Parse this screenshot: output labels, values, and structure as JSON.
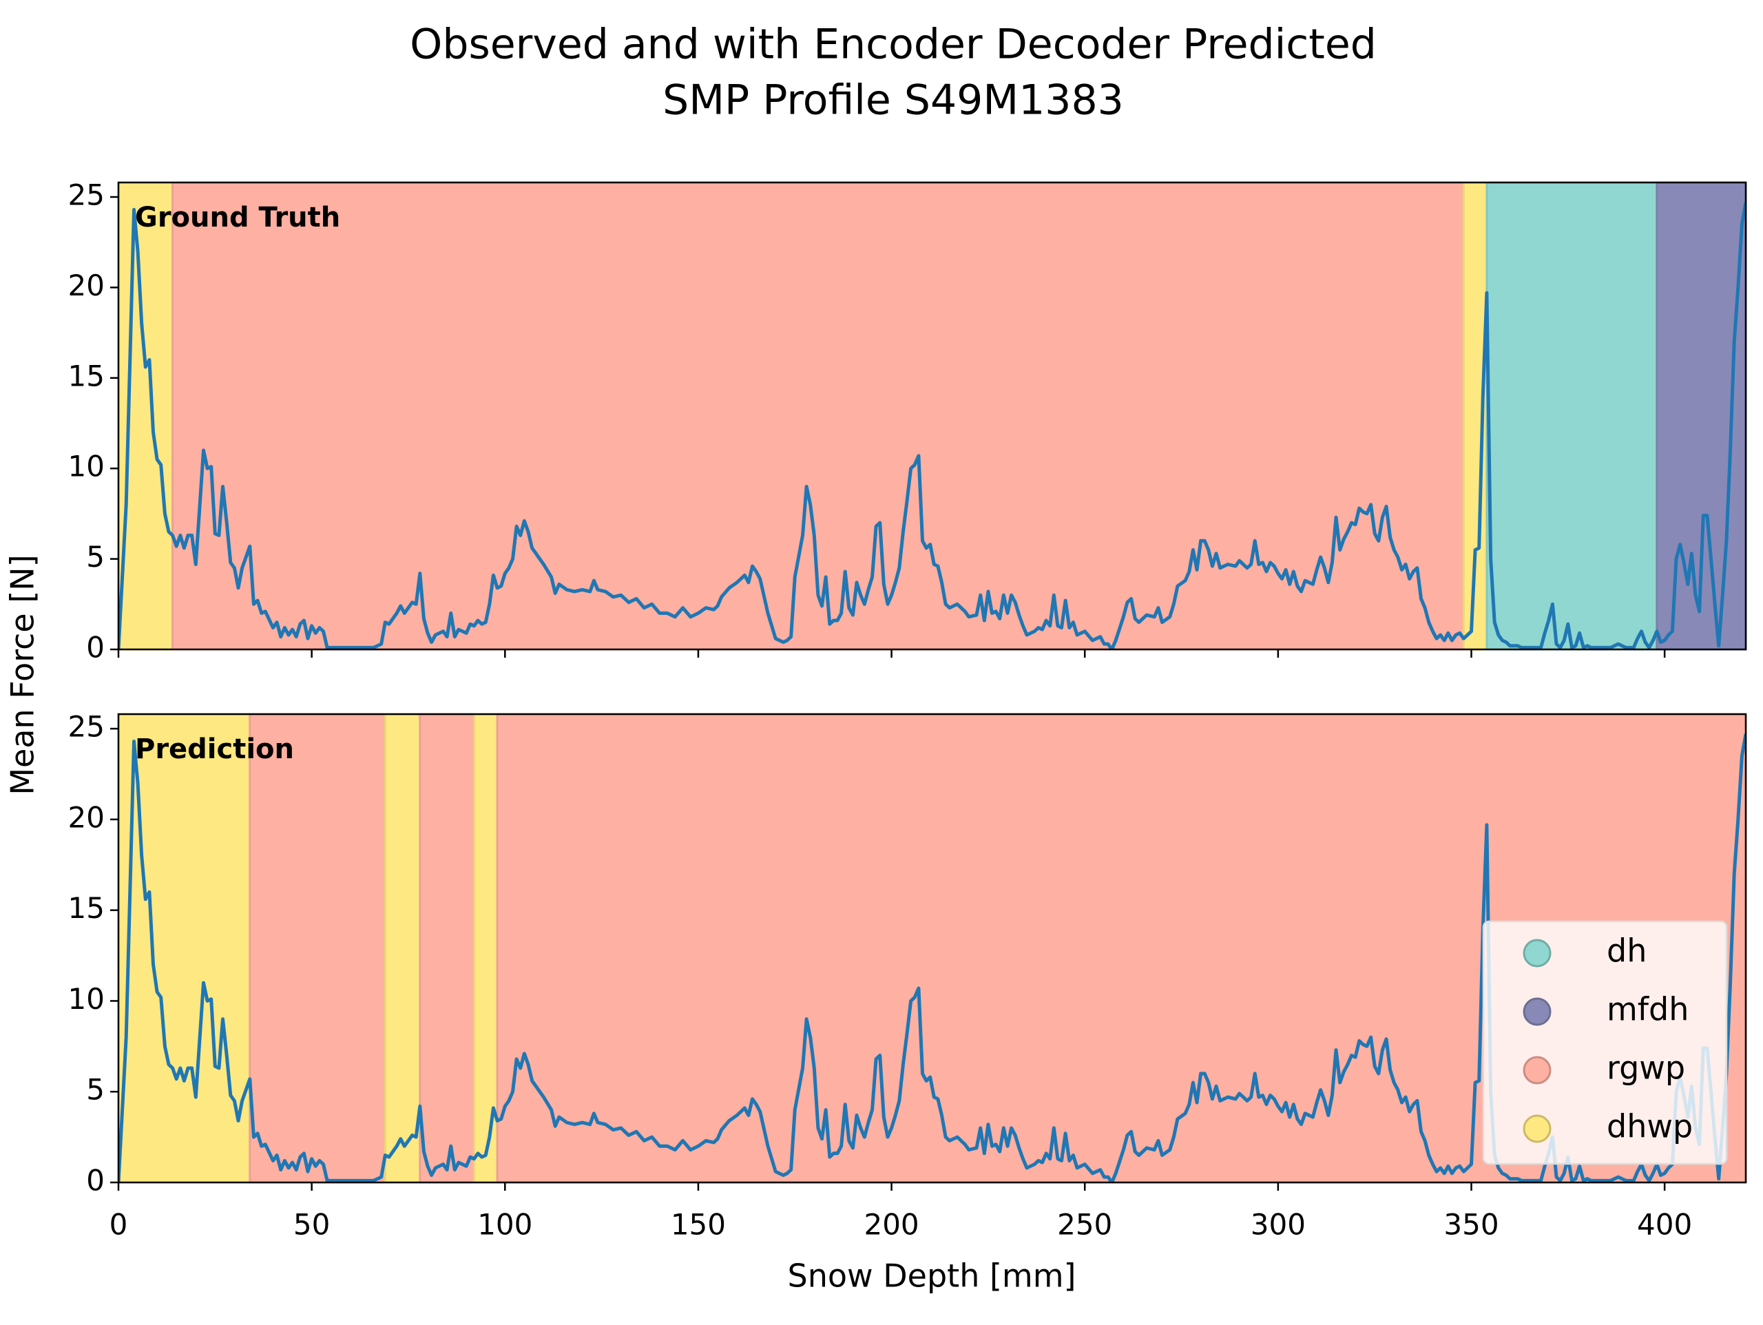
{
  "chart_data": {
    "type": "line",
    "title": "Observed and with Encoder Decoder Predicted",
    "subtitle": "SMP Profile S49M1383",
    "x_label": "Snow Depth [mm]",
    "y_label": "Mean Force [N]",
    "xlim": [
      0,
      421
    ],
    "xticks": [
      0,
      50,
      100,
      150,
      200,
      250,
      300,
      350,
      400
    ],
    "ylim": [
      0,
      25.8
    ],
    "yticks": [
      0,
      5,
      10,
      15,
      20,
      25
    ],
    "legend_position": "lower right",
    "layer_types": [
      {
        "name": "dh",
        "color": "#8fd7d0"
      },
      {
        "name": "mfdh",
        "color": "#8889b7"
      },
      {
        "name": "rgwp",
        "color": "#feb0a2"
      },
      {
        "name": "dhwp",
        "color": "#fee881"
      }
    ],
    "panels": [
      {
        "label": "Ground Truth",
        "regions": [
          {
            "type": "dhwp",
            "start": 0,
            "end": 14
          },
          {
            "type": "rgwp",
            "start": 14,
            "end": 348
          },
          {
            "type": "dhwp",
            "start": 348,
            "end": 354
          },
          {
            "type": "dh",
            "start": 354,
            "end": 398
          },
          {
            "type": "mfdh",
            "start": 398,
            "end": 421
          }
        ]
      },
      {
        "label": "Prediction",
        "regions": [
          {
            "type": "dhwp",
            "start": 0,
            "end": 34
          },
          {
            "type": "rgwp",
            "start": 34,
            "end": 69
          },
          {
            "type": "dhwp",
            "start": 69,
            "end": 78
          },
          {
            "type": "rgwp",
            "start": 78,
            "end": 92
          },
          {
            "type": "dhwp",
            "start": 92,
            "end": 98
          },
          {
            "type": "rgwp",
            "start": 98,
            "end": 421
          }
        ]
      }
    ],
    "line_color": "#1f77b4",
    "x": [
      0,
      2,
      4,
      5,
      6,
      7,
      8,
      9,
      10,
      11,
      12,
      13,
      14,
      15,
      16,
      17,
      18,
      19,
      20,
      22,
      23,
      24,
      25,
      26,
      27,
      28,
      29,
      30,
      31,
      32,
      34,
      35,
      36,
      37,
      38,
      40,
      41,
      42,
      43,
      44,
      45,
      46,
      47,
      48,
      49,
      50,
      51,
      52,
      53,
      54,
      56,
      60,
      64,
      66,
      68,
      69,
      70,
      72,
      73,
      74,
      76,
      77,
      78,
      79,
      80,
      81,
      82,
      84,
      85,
      86,
      87,
      88,
      90,
      91,
      92,
      93,
      94,
      95,
      96,
      97,
      98,
      99,
      100,
      101,
      102,
      103,
      104,
      105,
      106,
      107,
      108,
      110,
      112,
      113,
      114,
      116,
      118,
      120,
      122,
      123,
      124,
      126,
      128,
      130,
      132,
      134,
      136,
      138,
      140,
      142,
      144,
      146,
      148,
      150,
      152,
      154,
      155,
      156,
      158,
      160,
      162,
      163,
      164,
      165,
      166,
      168,
      170,
      172,
      173,
      174,
      175,
      177,
      178,
      179,
      180,
      181,
      182,
      183,
      184,
      185,
      186,
      187,
      188,
      189,
      190,
      191,
      192,
      193,
      194,
      195,
      196,
      197,
      198,
      199,
      200,
      201,
      202,
      203,
      204,
      205,
      206,
      207,
      208,
      209,
      210,
      211,
      212,
      213,
      214,
      215,
      217,
      219,
      220,
      222,
      223,
      224,
      225,
      226,
      227,
      228,
      229,
      230,
      231,
      232,
      233,
      234,
      235,
      237,
      238,
      239,
      240,
      241,
      242,
      243,
      244,
      245,
      246,
      247,
      248,
      250,
      252,
      254,
      255,
      256,
      257,
      258,
      260,
      261,
      262,
      263,
      264,
      266,
      268,
      269,
      270,
      272,
      273,
      274,
      276,
      277,
      278,
      279,
      280,
      281,
      282,
      283,
      284,
      285,
      287,
      289,
      290,
      291,
      292,
      293,
      294,
      295,
      296,
      297,
      298,
      299,
      300,
      301,
      302,
      303,
      304,
      305,
      306,
      307,
      308,
      309,
      310,
      311,
      312,
      313,
      314,
      315,
      316,
      317,
      318,
      319,
      320,
      321,
      322,
      323,
      324,
      325,
      326,
      327,
      328,
      329,
      330,
      331,
      332,
      333,
      334,
      335,
      336,
      337,
      338,
      339,
      340,
      341,
      342,
      343,
      344,
      345,
      346,
      347,
      348,
      349,
      350,
      351,
      352,
      353,
      354,
      355,
      356,
      357,
      358,
      359,
      360,
      362,
      363,
      364,
      366,
      368,
      369,
      370,
      371,
      372,
      373,
      374,
      375,
      376,
      377,
      378,
      379,
      380,
      381,
      384,
      386,
      388,
      390,
      392,
      393,
      394,
      395,
      396,
      397,
      398,
      399,
      400,
      401,
      402,
      403,
      404,
      405,
      406,
      407,
      408,
      409,
      410,
      411,
      412,
      413,
      414,
      415,
      416,
      417,
      418,
      419,
      420,
      421
    ],
    "values": [
      0,
      8,
      24.3,
      22,
      18,
      15.6,
      16,
      12,
      10.5,
      10.2,
      7.5,
      6.5,
      6.3,
      5.7,
      6.3,
      5.6,
      6.3,
      6.3,
      4.7,
      11,
      10,
      10.1,
      6.4,
      6.3,
      9,
      7,
      4.8,
      4.5,
      3.4,
      4.5,
      5.7,
      2.5,
      2.7,
      2,
      2.1,
      1.2,
      1.5,
      0.7,
      1.2,
      0.8,
      1.1,
      0.7,
      1.4,
      1.6,
      0.6,
      1.3,
      0.9,
      1.2,
      1,
      0.1,
      0.1,
      0.1,
      0.1,
      0.1,
      0.3,
      1.5,
      1.4,
      2,
      2.4,
      2,
      2.6,
      2.5,
      4.2,
      1.7,
      0.9,
      0.4,
      0.8,
      1,
      0.7,
      2,
      0.7,
      1.1,
      0.9,
      1.4,
      1.3,
      1.6,
      1.4,
      1.5,
      2.5,
      4.1,
      3.4,
      3.5,
      4.2,
      4.5,
      5,
      6.8,
      6.3,
      7.1,
      6.5,
      5.6,
      5.3,
      4.7,
      4,
      3.1,
      3.6,
      3.3,
      3.2,
      3.3,
      3.2,
      3.8,
      3.3,
      3.2,
      2.9,
      3,
      2.6,
      2.8,
      2.3,
      2.5,
      2,
      2,
      1.8,
      2.3,
      1.8,
      2,
      2.3,
      2.2,
      2.4,
      2.9,
      3.4,
      3.7,
      4.1,
      3.7,
      4.6,
      4.3,
      3.9,
      2,
      0.6,
      0.4,
      0.5,
      0.7,
      4,
      6.3,
      9,
      8,
      6.3,
      3,
      2.4,
      4,
      1.4,
      1.6,
      1.6,
      2,
      4.3,
      2.3,
      1.9,
      3.7,
      3,
      2.5,
      3.3,
      4,
      6.8,
      7,
      3.6,
      2.5,
      3,
      3.7,
      4.5,
      6.5,
      8.2,
      10,
      10.2,
      10.7,
      6,
      5.6,
      5.8,
      4.7,
      4.6,
      3.7,
      2.5,
      2.3,
      2.5,
      2.1,
      1.8,
      1.9,
      3,
      1.6,
      3.2,
      2,
      2.1,
      1.7,
      3,
      2,
      3,
      2.6,
      1.9,
      1.3,
      0.8,
      1,
      1.2,
      1.1,
      1.6,
      1.3,
      3,
      1.3,
      1.2,
      2.7,
      1.2,
      1.5,
      0.8,
      1,
      0.5,
      0.7,
      0.3,
      0.3,
      0,
      0.5,
      1.8,
      2.6,
      2.8,
      1.7,
      1.5,
      1.9,
      1.8,
      2.3,
      1.5,
      1.8,
      2.5,
      3.5,
      3.8,
      4.3,
      5.5,
      4.4,
      6,
      6,
      5.5,
      4.6,
      5.3,
      4.5,
      4.7,
      4.6,
      4.9,
      4.7,
      4.5,
      4.7,
      6,
      4.7,
      4.8,
      4.3,
      4.8,
      4.6,
      4.2,
      3.9,
      4.4,
      3.6,
      4.3,
      3.5,
      3.2,
      3.8,
      3.7,
      3.6,
      4.4,
      5.1,
      4.5,
      3.7,
      4.8,
      7.3,
      5.5,
      6.1,
      6.5,
      7,
      6.9,
      7.8,
      7.6,
      7.5,
      8,
      6.4,
      6,
      7.3,
      7.9,
      6.2,
      5.5,
      5.1,
      4.4,
      4.7,
      3.9,
      4.3,
      4.5,
      2.8,
      2.3,
      1.5,
      1,
      0.6,
      0.8,
      0.5,
      0.9,
      0.5,
      0.8,
      0.9,
      0.6,
      0.8,
      1,
      5.5,
      5.6,
      14,
      19.7,
      5,
      1.5,
      0.8,
      0.5,
      0.4,
      0.2,
      0.2,
      0.1,
      0.1,
      0.1,
      0.1,
      0.9,
      1.6,
      2.5,
      0.3,
      0.1,
      0.5,
      1.4,
      0.1,
      0.2,
      0.9,
      0.1,
      0.2,
      0.1,
      0.1,
      0.1,
      0.3,
      0.1,
      0.1,
      0.6,
      1,
      0.4,
      0.1,
      0.5,
      1,
      0.4,
      0.5,
      0.8,
      1,
      5,
      5.8,
      4.8,
      3.6,
      5.3,
      3,
      2.1,
      7.4,
      7.4,
      5,
      2.5,
      0.2,
      3,
      6,
      11,
      17,
      20,
      23.5,
      24.7
    ]
  }
}
